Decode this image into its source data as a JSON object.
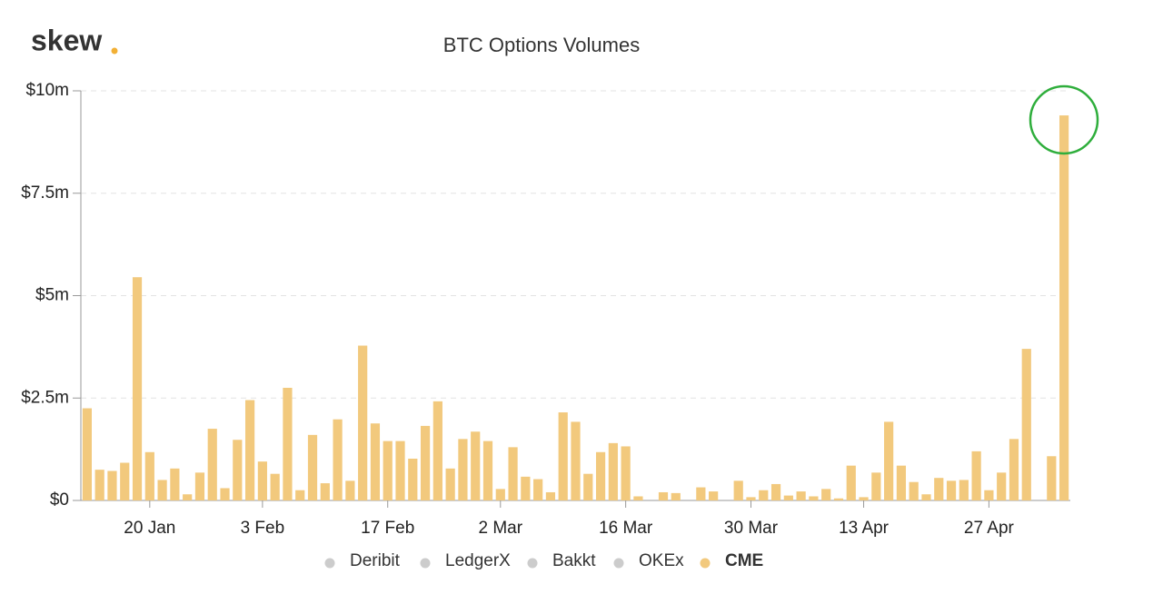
{
  "logo": "skew",
  "chart_data": {
    "type": "bar",
    "title": "BTC Options Volumes",
    "categories": [
      null,
      null,
      null,
      null,
      null,
      "20 Jan",
      null,
      null,
      null,
      null,
      null,
      null,
      null,
      null,
      "3 Feb",
      null,
      null,
      null,
      null,
      null,
      null,
      null,
      null,
      null,
      "17 Feb",
      null,
      null,
      null,
      null,
      null,
      null,
      null,
      null,
      "2 Mar",
      null,
      null,
      null,
      null,
      null,
      null,
      null,
      null,
      null,
      "16 Mar",
      null,
      null,
      null,
      null,
      null,
      null,
      null,
      null,
      null,
      "30 Mar",
      null,
      null,
      null,
      null,
      null,
      null,
      null,
      null,
      "13 Apr",
      null,
      null,
      null,
      null,
      null,
      null,
      null,
      null,
      null,
      "27 Apr",
      null,
      null,
      null,
      null,
      null,
      null
    ],
    "series": [
      {
        "name": "CME",
        "color": "#f2c97d",
        "values": [
          2.25,
          0.75,
          0.72,
          0.92,
          5.45,
          1.18,
          0.5,
          0.78,
          0.15,
          0.68,
          1.75,
          0.3,
          1.48,
          2.45,
          0.95,
          0.65,
          2.75,
          0.25,
          1.6,
          0.42,
          1.98,
          0.48,
          3.78,
          1.88,
          1.45,
          1.45,
          1.02,
          1.82,
          2.42,
          0.78,
          1.5,
          1.68,
          1.45,
          0.28,
          1.3,
          0.58,
          0.52,
          0.2,
          2.15,
          1.92,
          0.65,
          1.18,
          1.4,
          1.32,
          0.1,
          0,
          0.2,
          0.18,
          0,
          0.32,
          0.22,
          0,
          0.48,
          0.08,
          0.25,
          0.4,
          0.12,
          0.22,
          0.1,
          0.28,
          0.05,
          0.85,
          0.08,
          0.68,
          1.92,
          0.85,
          0.45,
          0.15,
          0.55,
          0.48,
          0.5,
          1.2,
          0.25,
          0.68,
          1.5,
          3.7,
          0,
          1.08,
          9.4
        ]
      }
    ],
    "legend": [
      {
        "name": "Deribit",
        "hidden": true
      },
      {
        "name": "LedgerX",
        "hidden": true
      },
      {
        "name": "Bakkt",
        "hidden": true
      },
      {
        "name": "OKEx",
        "hidden": true
      },
      {
        "name": "CME",
        "hidden": false
      }
    ],
    "ylim": [
      0,
      10
    ],
    "yticks": [
      {
        "value": 0,
        "label": "$0"
      },
      {
        "value": 2.5,
        "label": "$2.5m"
      },
      {
        "value": 5,
        "label": "$5m"
      },
      {
        "value": 7.5,
        "label": "$7.5m"
      },
      {
        "value": 10,
        "label": "$10m"
      }
    ],
    "grid": true
  }
}
